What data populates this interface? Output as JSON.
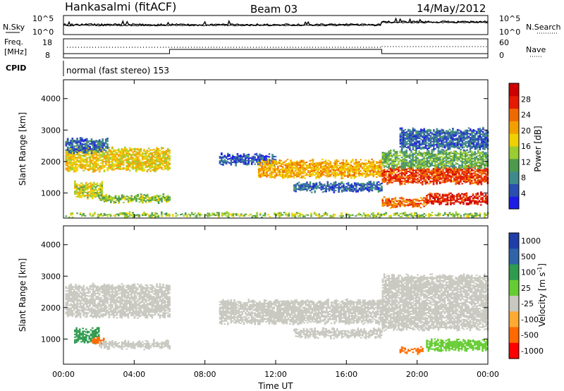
{
  "header": {
    "station": "Hankasalmi (fitACF)",
    "beam": "Beam 03",
    "date": "14/May/2012"
  },
  "noise_panel": {
    "left_label": "N.Sky",
    "right_label": "N.Search",
    "ytick_top": "10^5",
    "ytick_bottom": "10^0",
    "ytick_top_right": "10^5",
    "ytick_bottom_right": "10^0"
  },
  "freq_panel": {
    "left_label": "Freq.",
    "left_unit": "[MHz]",
    "right_label": "Nave",
    "ytick_top": "18",
    "ytick_bottom": "8",
    "ytick_top_right": "60",
    "ytick_bottom_right": "0"
  },
  "cpid_panel": {
    "label": "CPID",
    "mode_text": "normal (fast stereo) 153"
  },
  "colors": {
    "power": [
      "#1c1ce6",
      "#2a4fb0",
      "#3f8a8a",
      "#4c9b4c",
      "#9acd32",
      "#f0d000",
      "#f2a000",
      "#ee6a00",
      "#e61a00",
      "#cc0000"
    ],
    "velocity_neg": [
      "#ff0000",
      "#ff6a00",
      "#ffaa33"
    ],
    "velocity_zero": "#c8c8c0",
    "velocity_pos": [
      "#66cc33",
      "#2e9b4e",
      "#2f64a8",
      "#1f3ea8"
    ]
  },
  "chart_data": [
    {
      "type": "heatmap",
      "name": "power",
      "xlabel": "",
      "ylabel": "Slant Range [km]",
      "x_range_hours": [
        0,
        24
      ],
      "ylim": [
        200,
        4600
      ],
      "yticks": [
        "1000",
        "2000",
        "3000",
        "4000"
      ],
      "colorbar": {
        "label": "Power [dB]",
        "ticks": [
          "4",
          "8",
          "12",
          "16",
          "20",
          "24",
          "28"
        ],
        "range": [
          0,
          32
        ]
      },
      "regions": [
        {
          "t0": 0.1,
          "t1": 6.0,
          "r_low": 1700,
          "r_high": 2400,
          "level": 18
        },
        {
          "t0": 0.1,
          "t1": 2.5,
          "r_low": 2300,
          "r_high": 2700,
          "level": 6
        },
        {
          "t0": 0.6,
          "t1": 2.2,
          "r_low": 850,
          "r_high": 1300,
          "level": 16
        },
        {
          "t0": 2.0,
          "t1": 6.0,
          "r_low": 700,
          "r_high": 900,
          "level": 14
        },
        {
          "t0": 8.8,
          "t1": 12.0,
          "r_low": 1900,
          "r_high": 2200,
          "level": 5
        },
        {
          "t0": 11.0,
          "t1": 18.0,
          "r_low": 1500,
          "r_high": 2000,
          "level": 20
        },
        {
          "t0": 13.0,
          "t1": 18.0,
          "r_low": 1050,
          "r_high": 1300,
          "level": 6
        },
        {
          "t0": 18.0,
          "t1": 24.0,
          "r_low": 1300,
          "r_high": 1800,
          "level": 26
        },
        {
          "t0": 18.0,
          "t1": 24.0,
          "r_low": 1800,
          "r_high": 2300,
          "level": 12
        },
        {
          "t0": 19.0,
          "t1": 24.0,
          "r_low": 2400,
          "r_high": 3000,
          "level": 6
        },
        {
          "t0": 20.5,
          "t1": 24.0,
          "r_low": 650,
          "r_high": 950,
          "level": 28
        },
        {
          "t0": 18.0,
          "t1": 20.5,
          "r_low": 550,
          "r_high": 800,
          "level": 24
        },
        {
          "t0": 0.1,
          "t1": 24.0,
          "r_low": 250,
          "r_high": 320,
          "level": 14
        }
      ]
    },
    {
      "type": "heatmap",
      "name": "velocity",
      "xlabel": "Time UT",
      "ylabel": "Slant Range [km]",
      "x_range_hours": [
        0,
        24
      ],
      "ylim": [
        200,
        4600
      ],
      "yticks": [
        "1000",
        "2000",
        "3000",
        "4000"
      ],
      "xticks": [
        "00:00",
        "04:00",
        "08:00",
        "12:00",
        "16:00",
        "20:00",
        "00:00"
      ],
      "colorbar": {
        "label": "Velocity [m s^-1]",
        "ticks": [
          "1000",
          "500",
          "100",
          "25",
          "-25",
          "-100",
          "-500",
          "-1000"
        ]
      },
      "regions": [
        {
          "t0": 0.1,
          "t1": 6.0,
          "r_low": 1700,
          "r_high": 2700,
          "vel": 0
        },
        {
          "t0": 8.8,
          "t1": 18.0,
          "r_low": 1500,
          "r_high": 2200,
          "vel": 0
        },
        {
          "t0": 18.0,
          "t1": 24.0,
          "r_low": 1300,
          "r_high": 3000,
          "vel": 0
        },
        {
          "t0": 0.6,
          "t1": 2.0,
          "r_low": 900,
          "r_high": 1300,
          "vel": 300
        },
        {
          "t0": 1.6,
          "t1": 2.3,
          "r_low": 850,
          "r_high": 1000,
          "vel": -150
        },
        {
          "t0": 2.0,
          "t1": 6.0,
          "r_low": 700,
          "r_high": 900,
          "vel": 0
        },
        {
          "t0": 20.5,
          "t1": 24.0,
          "r_low": 650,
          "r_high": 950,
          "vel": 60
        },
        {
          "t0": 19.0,
          "t1": 20.3,
          "r_low": 550,
          "r_high": 700,
          "vel": -150
        },
        {
          "t0": 13.0,
          "t1": 18.0,
          "r_low": 1050,
          "r_high": 1300,
          "vel": 0
        }
      ]
    }
  ]
}
